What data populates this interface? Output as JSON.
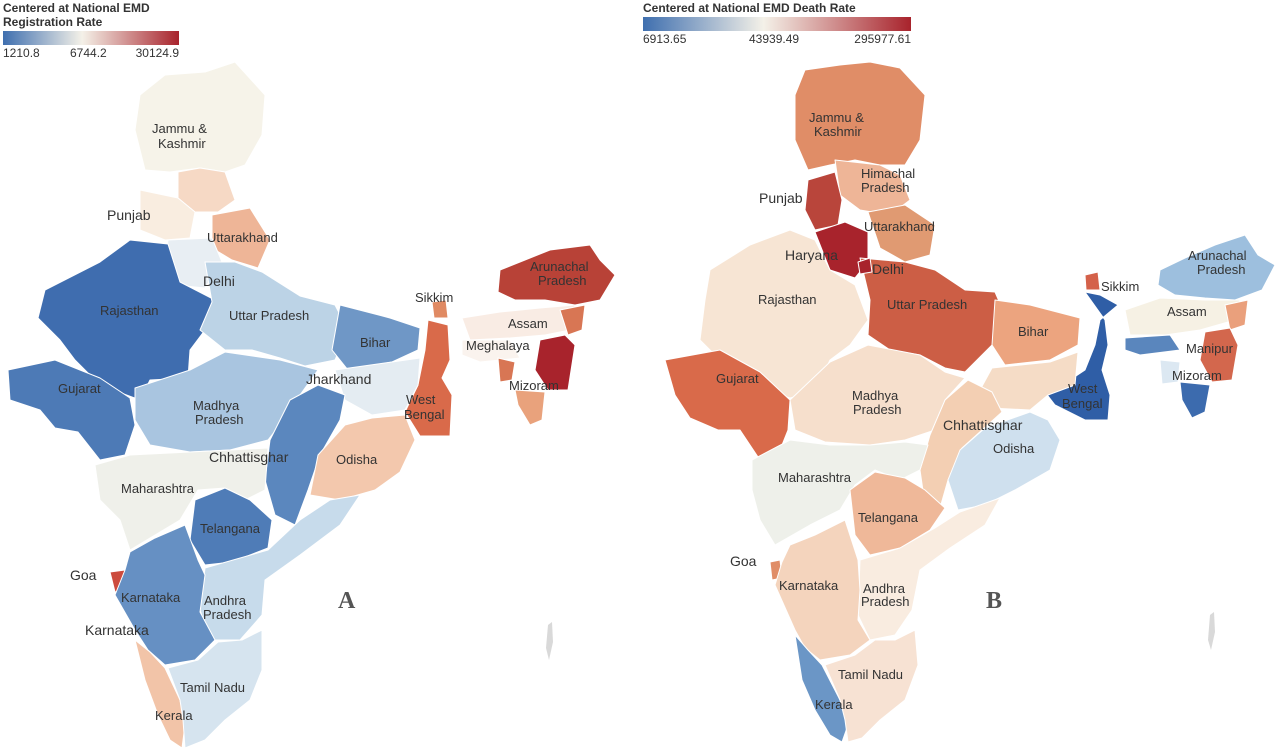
{
  "panel_a": {
    "letter": "A",
    "legend": {
      "title_line1": "Centered at National EMD",
      "title_line2": "Registration Rate",
      "ticks": [
        "1210.8",
        "6744.2",
        "30124.9"
      ],
      "colors": [
        "#3f6faf",
        "#f4f1e8",
        "#a8232c"
      ]
    },
    "labels": {
      "jammu_1": "Jammu &",
      "jammu_2": "Kashmir",
      "punjab": "Punjab",
      "uttarakhand": "Uttarakhand",
      "delhi": "Delhi",
      "rajasthan": "Rajasthan",
      "uttar_pradesh": "Uttar Pradesh",
      "sikkim": "Sikkim",
      "arunachal_1": "Arunachal",
      "arunachal_2": "Pradesh",
      "assam": "Assam",
      "meghalaya": "Meghalaya",
      "bihar": "Bihar",
      "jharkhand": "Jharkhand",
      "mizoram": "Mizoram",
      "gujarat": "Gujarat",
      "west_bengal_1": "West",
      "west_bengal_2": "Bengal",
      "mp_1": "Madhya",
      "mp_2": "Pradesh",
      "chhattisgarh": "Chhattisghar",
      "odisha": "Odisha",
      "maharashtra": "Maharashtra",
      "telangana": "Telangana",
      "goa": "Goa",
      "karnataka_inner": "Karnataka",
      "karnataka_outer": "Karnataka",
      "ap_1": "Andhra",
      "ap_2": "Pradesh",
      "tamil_nadu": "Tamil Nadu",
      "kerala": "Kerala"
    }
  },
  "panel_b": {
    "letter": "B",
    "legend": {
      "title": "Centered at National EMD Death Rate",
      "ticks": [
        "6913.65",
        "43939.49",
        "295977.61"
      ],
      "colors": [
        "#3f6faf",
        "#f4f1e8",
        "#a8232c"
      ]
    },
    "labels": {
      "jammu_1": "Jammu &",
      "jammu_2": "Kashmir",
      "hp_1": "Himachal",
      "hp_2": "Pradesh",
      "punjab": "Punjab",
      "uttarakhand": "Uttarakhand",
      "haryana": "Haryana",
      "delhi": "Delhi",
      "rajasthan": "Rajasthan",
      "uttar_pradesh": "Uttar Pradesh",
      "sikkim": "Sikkim",
      "arunachal_1": "Arunachal",
      "arunachal_2": "Pradesh",
      "assam": "Assam",
      "bihar": "Bihar",
      "manipur": "Manipur",
      "mizoram": "Mizoram",
      "gujarat": "Gujarat",
      "west_bengal_1": "West",
      "west_bengal_2": "Bengal",
      "mp_1": "Madhya",
      "mp_2": "Pradesh",
      "chhattisgarh": "Chhattisghar",
      "odisha": "Odisha",
      "maharashtra": "Maharashtra",
      "telangana": "Telangana",
      "goa": "Goa",
      "karnataka": "Karnataka",
      "ap_1": "Andhra",
      "ap_2": "Pradesh",
      "tamil_nadu": "Tamil Nadu",
      "kerala": "Kerala"
    }
  }
}
